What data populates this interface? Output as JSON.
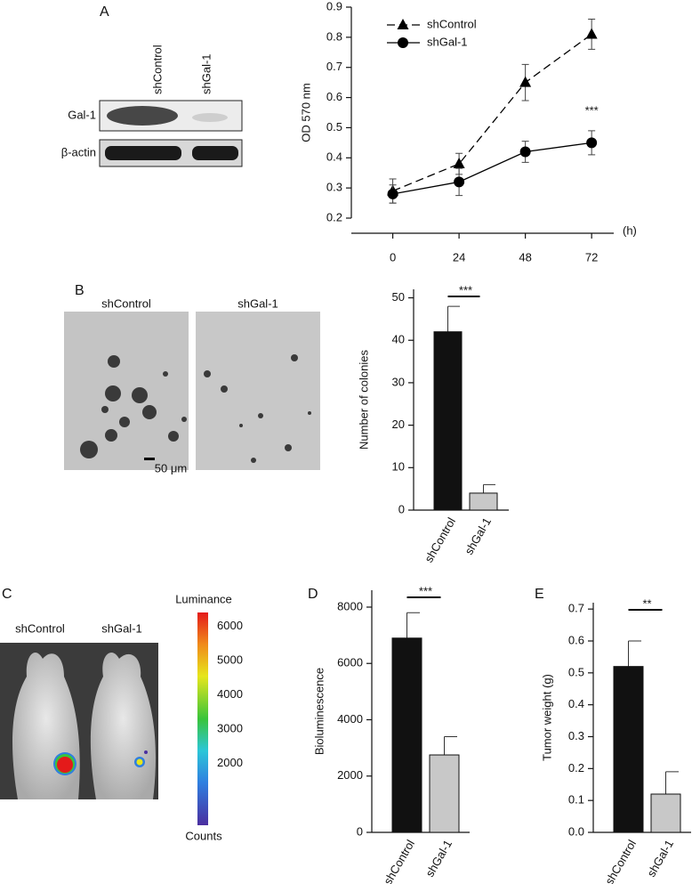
{
  "panel_labels": [
    "A",
    "B",
    "C",
    "D",
    "E"
  ],
  "blot": {
    "lanes": [
      "shControl",
      "shGal-1"
    ],
    "rows": [
      "Gal-1",
      "β-actin"
    ]
  },
  "micrographs": {
    "labels": [
      "shControl",
      "shGal-1"
    ],
    "scale_bar": "50 μm"
  },
  "imaging": {
    "labels": [
      "shControl",
      "shGal-1"
    ],
    "colorbar": {
      "title": "Luminance",
      "footer": "Counts",
      "lim": [
        200,
        6400
      ],
      "ticks": [
        2000,
        3000,
        4000,
        5000,
        6000
      ]
    }
  },
  "chart_data": [
    {
      "type": "line",
      "x": [
        0,
        24,
        48,
        72
      ],
      "xlabel": "(h)",
      "ylabel": "OD 570 nm",
      "xlim": [
        -15,
        80
      ],
      "xticks": [
        0,
        24,
        48,
        72
      ],
      "ylim": [
        0.2,
        0.9
      ],
      "yticks": [
        0.2,
        0.3,
        0.4,
        0.5,
        0.6,
        0.7,
        0.8,
        0.9
      ],
      "series": [
        {
          "name": "shControl",
          "color": "#000000",
          "marker": "triangle",
          "dashed": true,
          "values": [
            0.29,
            0.38,
            0.65,
            0.81
          ],
          "errors": [
            0.04,
            0.035,
            0.06,
            0.05
          ]
        },
        {
          "name": "shGal-1",
          "color": "#000000",
          "marker": "circle",
          "dashed": false,
          "values": [
            0.28,
            0.32,
            0.42,
            0.45
          ],
          "errors": [
            0.03,
            0.045,
            0.035,
            0.04
          ]
        }
      ],
      "annotations": [
        "***"
      ]
    },
    {
      "type": "bar",
      "categories": [
        "shControl",
        "shGal-1"
      ],
      "values": [
        42,
        4
      ],
      "errors": [
        6,
        2
      ],
      "colors": [
        "#111111",
        "#c8c8c8"
      ],
      "ylabel": "Number of colonies",
      "ylim": [
        0,
        52
      ],
      "yticks": [
        0,
        10,
        20,
        30,
        40,
        50
      ],
      "significance": "***"
    },
    {
      "type": "bar",
      "categories": [
        "shControl",
        "shGal-1"
      ],
      "values": [
        6900,
        2750
      ],
      "errors": [
        900,
        650
      ],
      "colors": [
        "#111111",
        "#c8c8c8"
      ],
      "ylabel": "Bioluminescence",
      "ylim": [
        0,
        8600
      ],
      "yticks": [
        0,
        2000,
        4000,
        6000,
        8000
      ],
      "significance": "***"
    },
    {
      "type": "bar",
      "categories": [
        "shControl",
        "shGal-1"
      ],
      "values": [
        0.52,
        0.12
      ],
      "errors": [
        0.08,
        0.07
      ],
      "colors": [
        "#111111",
        "#c8c8c8"
      ],
      "ylabel": "Tumor weight (g)",
      "ylim": [
        0,
        0.72
      ],
      "yticks": [
        {
          "value": 0,
          "label": "0.0"
        },
        0.1,
        0.2,
        0.3,
        0.4,
        0.5,
        0.6,
        0.7
      ],
      "significance": "**"
    }
  ]
}
